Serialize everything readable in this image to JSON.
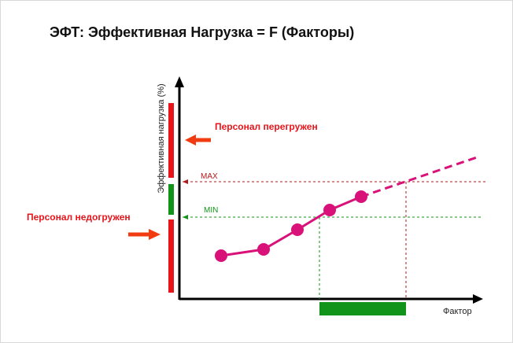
{
  "title": "ЭФТ: Эффективная Нагрузка = F (Факторы)",
  "axes": {
    "y_label": "Эффективная нагрузка (%)",
    "x_label": "Фактор"
  },
  "levels": {
    "max_label": "MAX",
    "min_label": "MIN"
  },
  "annotations": {
    "overloaded": "Персонал перегружен",
    "underloaded": "Персонал недогружен"
  },
  "colors": {
    "red": "#e8141a",
    "green": "#12941a",
    "curve": "#d9127a",
    "arrow": "#f03c10",
    "axis": "#000000"
  }
}
